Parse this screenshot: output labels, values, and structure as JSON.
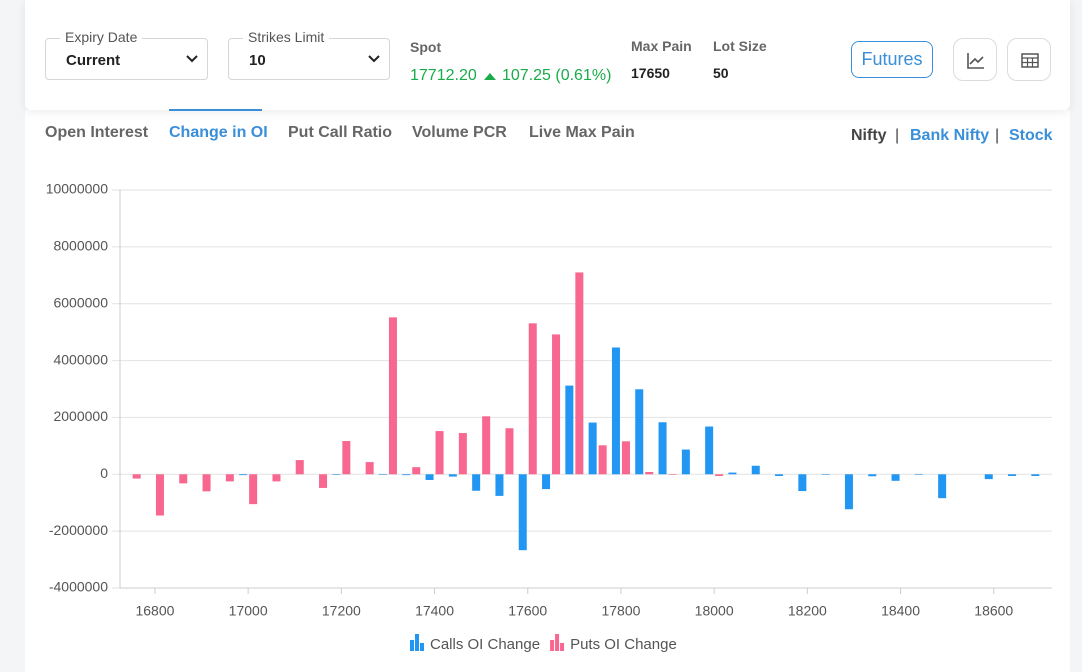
{
  "filters": [
    {
      "label": "Expiry Date",
      "value": "Current"
    },
    {
      "label": "Strikes Limit",
      "value": "10"
    }
  ],
  "spot": {
    "label": "Spot",
    "value": "17712.20",
    "change": "107.25 (0.61%)"
  },
  "max_pain": {
    "label": "Max Pain",
    "value": "17650"
  },
  "lot_size": {
    "label": "Lot Size",
    "value": "50"
  },
  "futures_button": "Futures",
  "tabs": [
    "Open Interest",
    "Change in OI",
    "Put Call Ratio",
    "Volume PCR",
    "Live Max Pain"
  ],
  "instruments": [
    "Nifty",
    "Bank Nifty",
    "Stock"
  ],
  "chart_data": {
    "type": "bar",
    "x": [
      16750,
      16800,
      16850,
      16900,
      16950,
      17000,
      17050,
      17100,
      17150,
      17200,
      17250,
      17300,
      17350,
      17400,
      17450,
      17500,
      17550,
      17600,
      17650,
      17700,
      17750,
      17800,
      17850,
      17900,
      17950,
      18000,
      18050,
      18100,
      18150,
      18200,
      18250,
      18300,
      18350,
      18400,
      18450,
      18500,
      18550,
      18600,
      18650,
      18700
    ],
    "series": [
      {
        "name": "Calls OI Change",
        "color": "#2196f3",
        "values": [
          0,
          0,
          0,
          0,
          0,
          -30000,
          0,
          0,
          0,
          -20000,
          0,
          -20000,
          -30000,
          -200000,
          -80000,
          -580000,
          -760000,
          -2670000,
          -520000,
          3120000,
          1820000,
          4460000,
          2990000,
          1830000,
          870000,
          1680000,
          60000,
          300000,
          -60000,
          -590000,
          -20000,
          -1230000,
          -70000,
          -230000,
          -20000,
          -840000,
          0,
          -170000,
          -60000,
          -60000
        ]
      },
      {
        "name": "Puts OI Change",
        "color": "#f7678f",
        "values": [
          -150000,
          -1450000,
          -320000,
          -600000,
          -250000,
          -1050000,
          -250000,
          500000,
          -480000,
          1170000,
          430000,
          5520000,
          250000,
          1520000,
          1450000,
          2040000,
          1620000,
          5310000,
          4920000,
          7100000,
          1020000,
          1160000,
          80000,
          -20000,
          0,
          -60000,
          0,
          0,
          0,
          0,
          0,
          0,
          0,
          0,
          0,
          0,
          0,
          0,
          0,
          0
        ]
      }
    ],
    "xlim": [
      16725,
      18725
    ],
    "xticks": [
      16800,
      17000,
      17200,
      17400,
      17600,
      17800,
      18000,
      18200,
      18400,
      18600
    ],
    "ylim": [
      -4000000,
      10000000
    ],
    "yticks": [
      -4000000,
      -2000000,
      0,
      2000000,
      4000000,
      6000000,
      8000000,
      10000000
    ],
    "grid": true,
    "legend": "bottom"
  }
}
